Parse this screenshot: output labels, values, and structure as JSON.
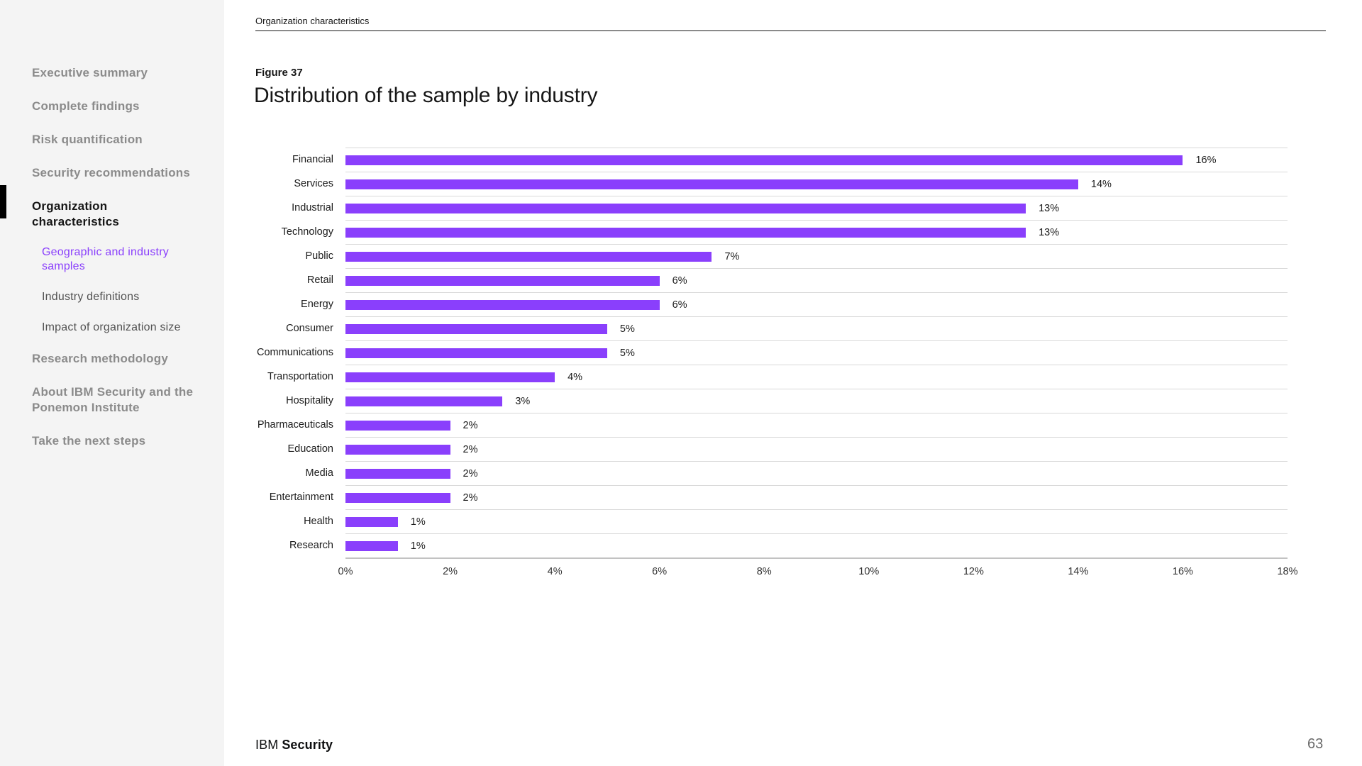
{
  "sidebar": {
    "items": [
      {
        "label": "Executive summary",
        "level": 1,
        "state": "default"
      },
      {
        "label": "Complete findings",
        "level": 1,
        "state": "default"
      },
      {
        "label": "Risk quantification",
        "level": 1,
        "state": "default"
      },
      {
        "label": "Security recommendations",
        "level": 1,
        "state": "default"
      },
      {
        "label": "Organization characteristics",
        "level": 1,
        "state": "active"
      },
      {
        "label": "Geographic and industry samples",
        "level": 2,
        "state": "selected"
      },
      {
        "label": "Industry definitions",
        "level": 2,
        "state": "default"
      },
      {
        "label": "Impact of organization size",
        "level": 2,
        "state": "default"
      },
      {
        "label": "Research methodology",
        "level": 1,
        "state": "default"
      },
      {
        "label": "About IBM Security and the Ponemon Institute",
        "level": 1,
        "state": "default"
      },
      {
        "label": "Take the next steps",
        "level": 1,
        "state": "default"
      }
    ]
  },
  "header": {
    "section_title": "Organization characteristics"
  },
  "figure": {
    "label": "Figure 37",
    "title": "Distribution of the sample by industry"
  },
  "chart_data": {
    "type": "bar",
    "orientation": "horizontal",
    "title": "Distribution of the sample by industry",
    "categories": [
      "Financial",
      "Services",
      "Industrial",
      "Technology",
      "Public",
      "Retail",
      "Energy",
      "Consumer",
      "Communications",
      "Transportation",
      "Hospitality",
      "Pharmaceuticals",
      "Education",
      "Media",
      "Entertainment",
      "Health",
      "Research"
    ],
    "values": [
      16,
      14,
      13,
      13,
      7,
      6,
      6,
      5,
      5,
      4,
      3,
      2,
      2,
      2,
      2,
      1,
      1
    ],
    "value_labels": [
      "16%",
      "14%",
      "13%",
      "13%",
      "7%",
      "6%",
      "6%",
      "5%",
      "5%",
      "4%",
      "3%",
      "2%",
      "2%",
      "2%",
      "2%",
      "1%",
      "1%"
    ],
    "xlim": [
      0,
      18
    ],
    "x_tick_values": [
      0,
      2,
      4,
      6,
      8,
      10,
      12,
      14,
      16,
      18
    ],
    "x_tick_labels": [
      "0%",
      "2%",
      "4%",
      "6%",
      "8%",
      "10%",
      "12%",
      "14%",
      "16%",
      "18%"
    ],
    "bar_color": "#8a3ffc",
    "grid": true,
    "legend": false
  },
  "footer": {
    "brand_prefix": "IBM",
    "brand_suffix": "Security",
    "page_number": "63"
  }
}
